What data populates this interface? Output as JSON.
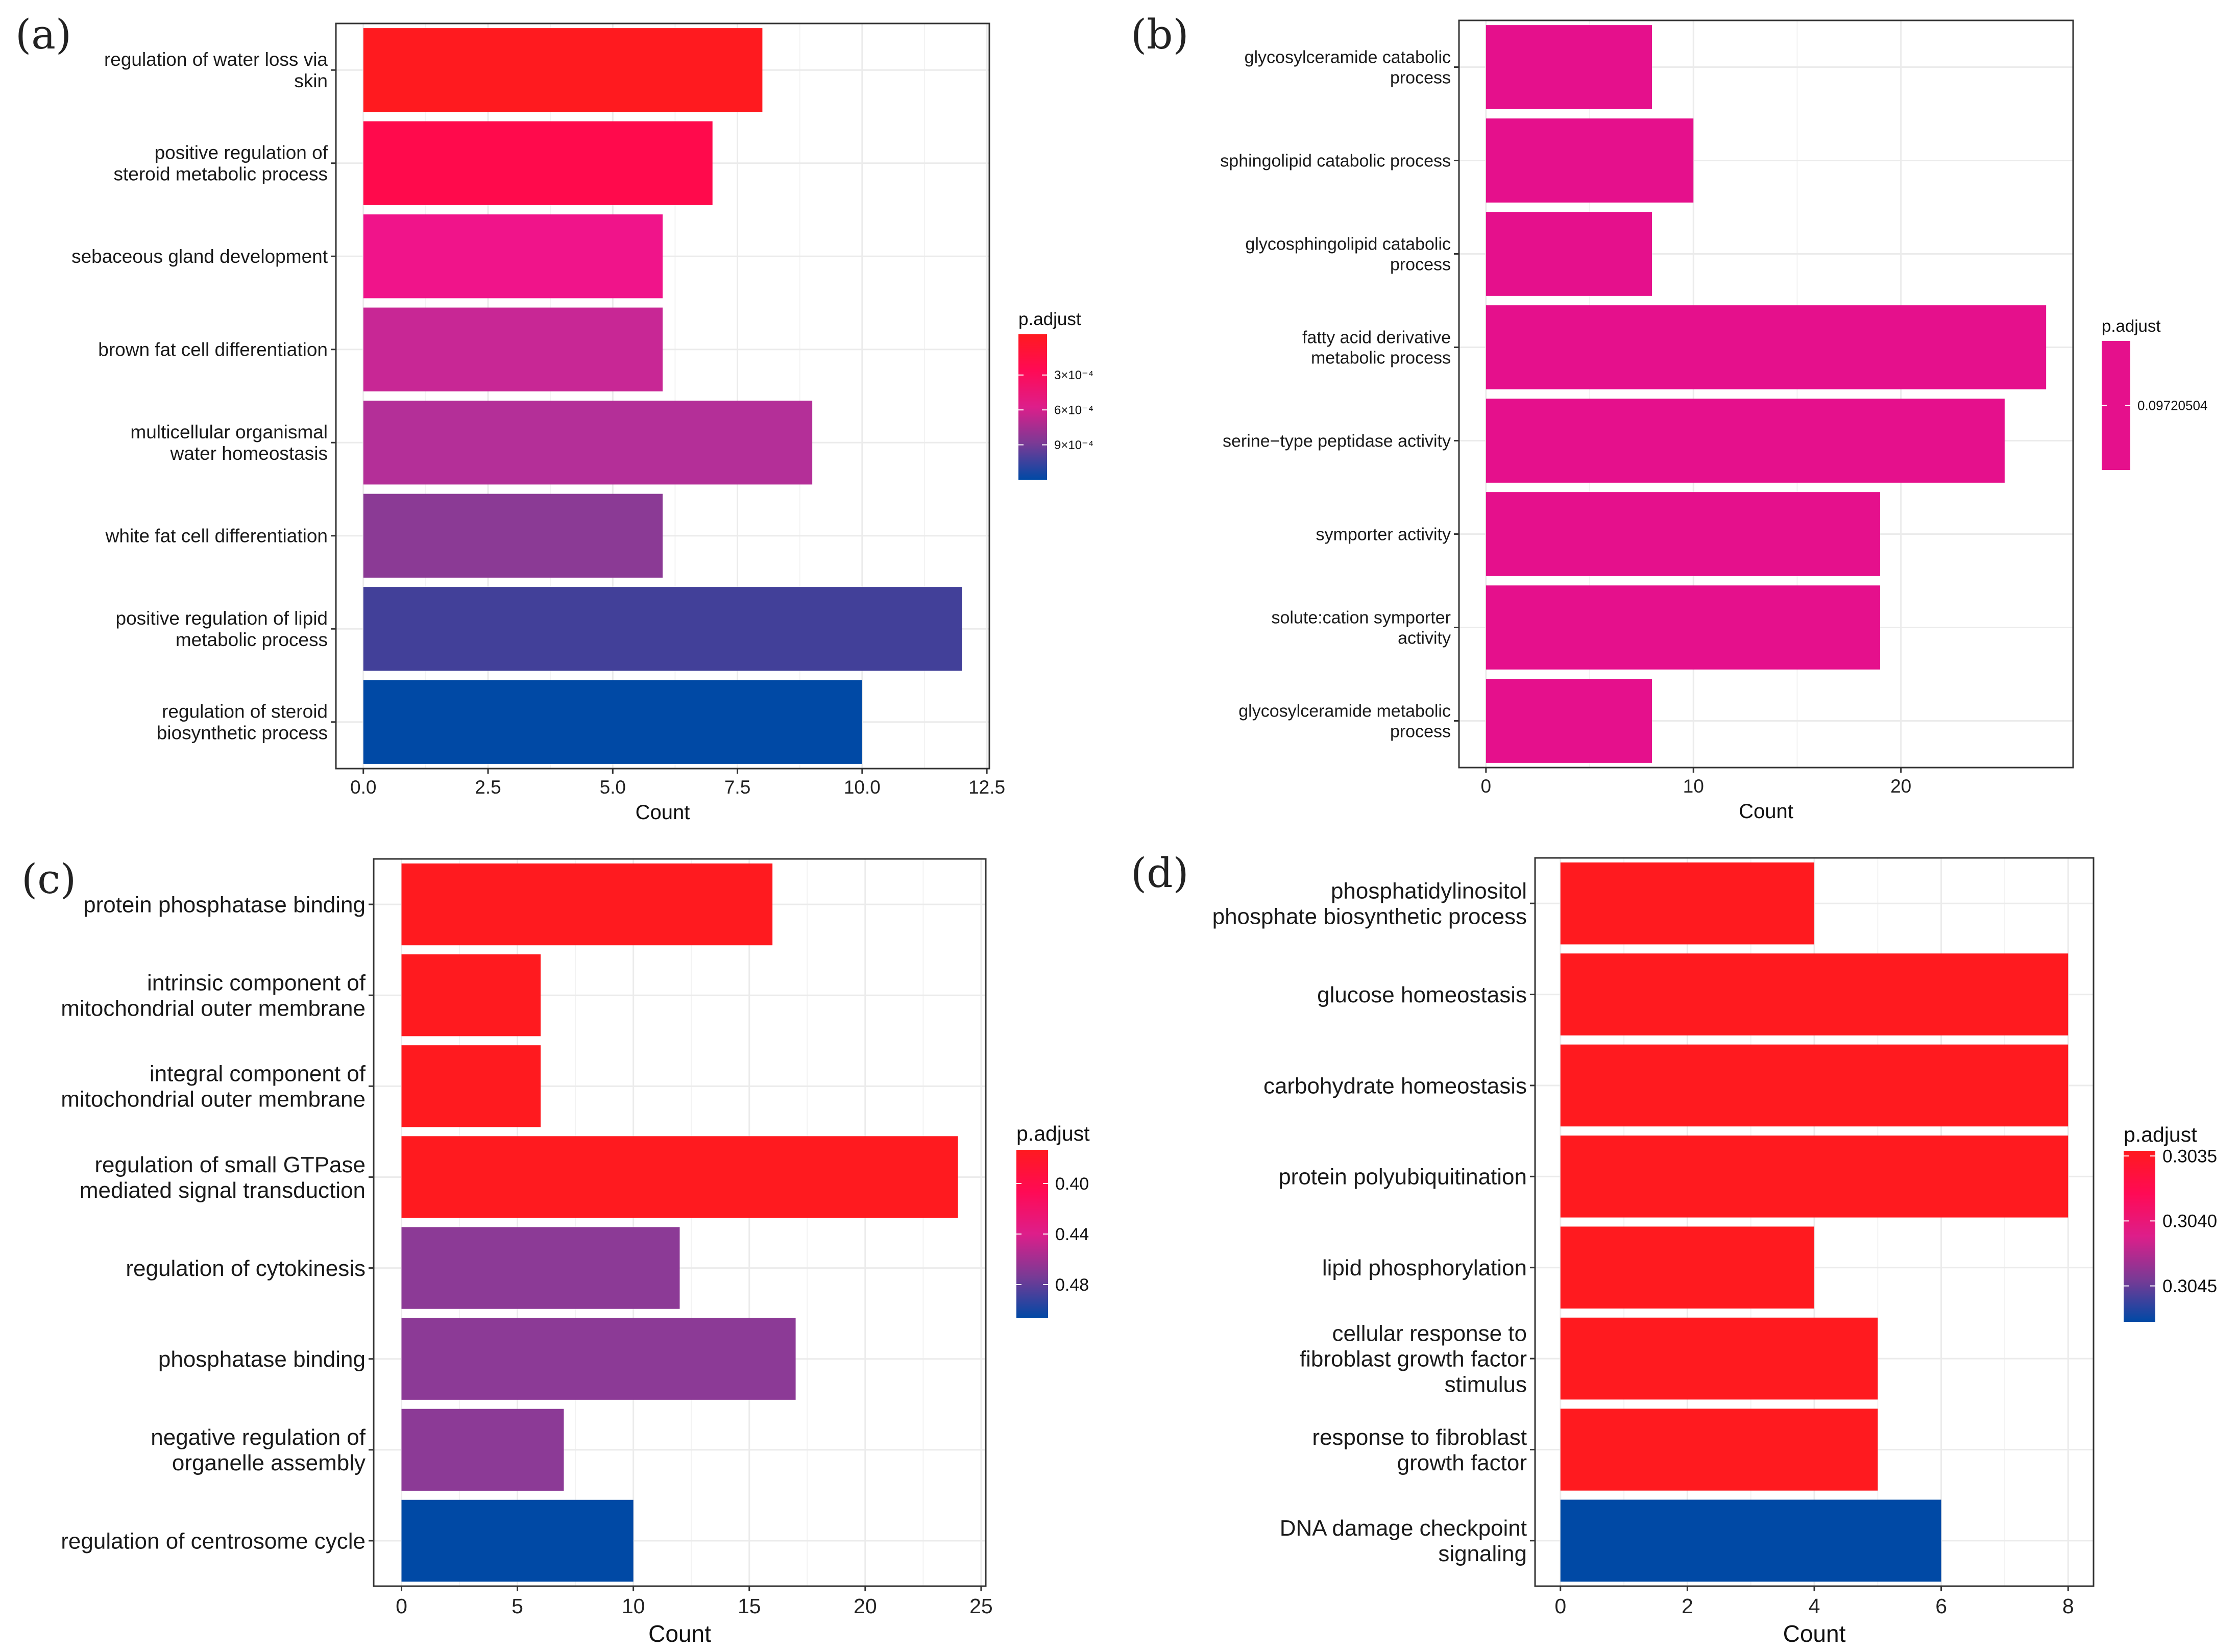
{
  "chart_data": [
    {
      "panel": "(a)",
      "type": "bar",
      "orientation": "horizontal",
      "categories": [
        "regulation of water loss via\nskin",
        "positive regulation of\nsteroid metabolic process",
        "sebaceous gland development",
        "brown fat cell differentiation",
        "multicellular organismal\nwater homeostasis",
        "white fat cell differentiation",
        "positive regulation of lipid\nmetabolic process",
        "regulation of steroid\nbiosynthetic process"
      ],
      "values": [
        8,
        7,
        6,
        6,
        9,
        6,
        12,
        10
      ],
      "bar_colors": [
        "#ff1a1f",
        "#ff0a4c",
        "#f0148a",
        "#c82795",
        "#b42f98",
        "#8b3a95",
        "#424099",
        "#0049a5"
      ],
      "xlabel": "Count",
      "xlim": [
        -0.55,
        12.55
      ],
      "xticks": [
        0,
        2.5,
        5,
        7.5,
        10,
        12.5
      ],
      "xtick_labels": [
        "0.0",
        "2.5",
        "5.0",
        "7.5",
        "10.0",
        "12.5"
      ],
      "legend": {
        "title": "p.adjust",
        "gradient": [
          "#ff1a1f",
          "#ff0a55",
          "#dd1e8a",
          "#7a3a95",
          "#0049a5"
        ],
        "ticks": [
          "3×10⁻⁴",
          "6×10⁻⁴",
          "9×10⁻⁴"
        ],
        "tick_fracs": [
          0.28,
          0.52,
          0.76
        ]
      }
    },
    {
      "panel": "(b)",
      "type": "bar",
      "orientation": "horizontal",
      "categories": [
        "glycosylceramide catabolic\nprocess",
        "sphingolipid catabolic process",
        "glycosphingolipid catabolic\nprocess",
        "fatty acid derivative\nmetabolic process",
        "serine−type peptidase activity",
        "symporter activity",
        "solute:cation symporter\nactivity",
        "glycosylceramide metabolic\nprocess"
      ],
      "values": [
        8,
        10,
        8,
        27,
        25,
        19,
        19,
        8
      ],
      "bar_colors": [
        "#e5108c",
        "#e5108c",
        "#e5108c",
        "#e5108c",
        "#e5108c",
        "#e5108c",
        "#e5108c",
        "#e5108c"
      ],
      "xlabel": "Count",
      "xlim": [
        -1.3,
        28.3
      ],
      "xticks": [
        0,
        10,
        20
      ],
      "xtick_labels": [
        "0",
        "10",
        "20"
      ],
      "legend": {
        "title": "p.adjust",
        "gradient": [
          "#e5108c",
          "#e5108c"
        ],
        "ticks": [
          "0.09720504"
        ],
        "tick_fracs": [
          0.5
        ]
      }
    },
    {
      "panel": "(c)",
      "type": "bar",
      "orientation": "horizontal",
      "categories": [
        "protein phosphatase binding",
        "intrinsic component of\nmitochondrial outer membrane",
        "integral component of\nmitochondrial outer membrane",
        "regulation of small GTPase\nmediated signal transduction",
        "regulation of cytokinesis",
        "phosphatase binding",
        "negative regulation of\norganelle assembly",
        "regulation of centrosome cycle"
      ],
      "values": [
        16,
        6,
        6,
        24,
        12,
        17,
        7,
        10
      ],
      "bar_colors": [
        "#ff1a1f",
        "#ff1a1f",
        "#ff1a1f",
        "#ff1a1f",
        "#8c3a96",
        "#8c3a96",
        "#8c3a96",
        "#0049a5"
      ],
      "xlabel": "Count",
      "xlim": [
        -1.2,
        25.2
      ],
      "xticks": [
        0,
        5,
        10,
        15,
        20,
        25
      ],
      "xtick_labels": [
        "0",
        "5",
        "10",
        "15",
        "20",
        "25"
      ],
      "legend": {
        "title": "p.adjust",
        "gradient": [
          "#ff1a1f",
          "#ff0a55",
          "#dd1e8a",
          "#7a3a95",
          "#0049a5"
        ],
        "ticks": [
          "0.40",
          "0.44",
          "0.48"
        ],
        "tick_fracs": [
          0.2,
          0.5,
          0.8
        ]
      }
    },
    {
      "panel": "(d)",
      "type": "bar",
      "orientation": "horizontal",
      "categories": [
        "phosphatidylinositol\nphosphate biosynthetic process",
        "glucose homeostasis",
        "carbohydrate homeostasis",
        "protein polyubiquitination",
        "lipid phosphorylation",
        "cellular response to\nfibroblast growth factor\nstimulus",
        "response to fibroblast\ngrowth factor",
        "DNA damage checkpoint\nsignaling"
      ],
      "values": [
        4,
        8,
        8,
        8,
        4,
        5,
        5,
        6
      ],
      "bar_colors": [
        "#ff1a1f",
        "#ff1a1f",
        "#ff1a1f",
        "#ff1a1f",
        "#ff1a1f",
        "#ff1a1f",
        "#ff1a1f",
        "#0049a5"
      ],
      "xlabel": "Count",
      "xlim": [
        -0.4,
        8.4
      ],
      "xticks": [
        0,
        2,
        4,
        6,
        8
      ],
      "xtick_labels": [
        "0",
        "2",
        "4",
        "6",
        "8"
      ],
      "legend": {
        "title": "p.adjust",
        "gradient": [
          "#ff1a1f",
          "#ff0a55",
          "#dd1e8a",
          "#7a3a95",
          "#0049a5"
        ],
        "ticks": [
          "0.3035",
          "0.3040",
          "0.3045"
        ],
        "tick_fracs": [
          0.03,
          0.41,
          0.79
        ]
      }
    }
  ]
}
